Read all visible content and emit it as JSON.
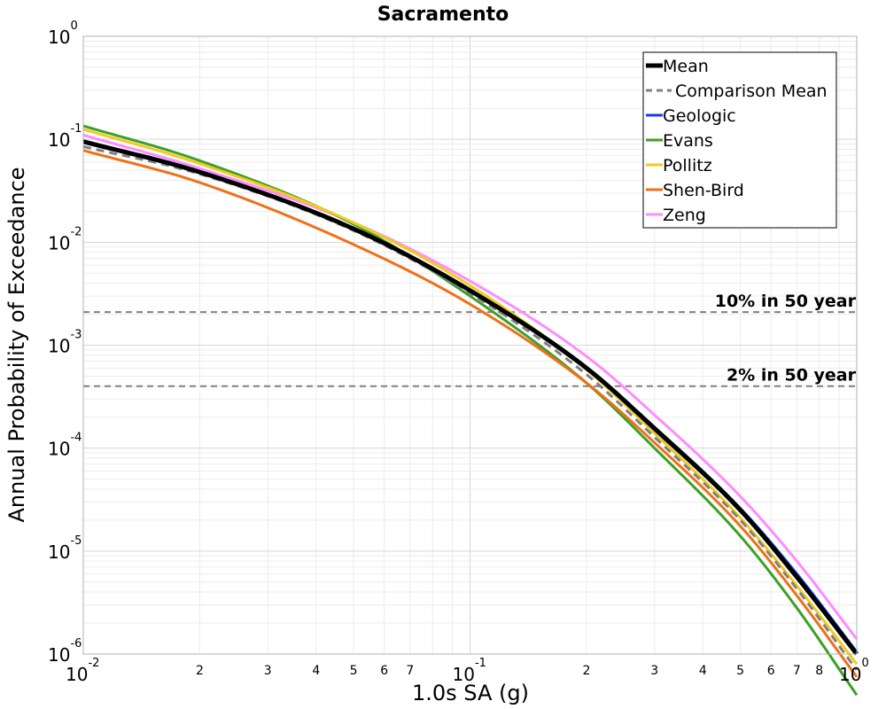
{
  "chart_data": {
    "type": "line",
    "title": "Sacramento",
    "xlabel": "1.0s SA (g)",
    "ylabel": "Annual Probability of Exceedance",
    "x_scale": "log",
    "y_scale": "log",
    "xlim": [
      0.01,
      1.0
    ],
    "ylim": [
      1e-06,
      1.0
    ],
    "grid": true,
    "legend_position": "top-right",
    "x_major_ticks": [
      {
        "base": "10",
        "exp": "-2",
        "value": 0.01
      },
      {
        "base": "10",
        "exp": "-1",
        "value": 0.1
      },
      {
        "base": "10",
        "exp": "0",
        "value": 1.0
      }
    ],
    "x_minor_tick_labels": [
      {
        "label": "2",
        "value": 0.02
      },
      {
        "label": "3",
        "value": 0.03
      },
      {
        "label": "4",
        "value": 0.04
      },
      {
        "label": "5",
        "value": 0.05
      },
      {
        "label": "6",
        "value": 0.06
      },
      {
        "label": "7",
        "value": 0.07
      },
      {
        "label": "2",
        "value": 0.2
      },
      {
        "label": "3",
        "value": 0.3
      },
      {
        "label": "4",
        "value": 0.4
      },
      {
        "label": "5",
        "value": 0.5
      },
      {
        "label": "6",
        "value": 0.6
      },
      {
        "label": "7",
        "value": 0.7
      },
      {
        "label": "8",
        "value": 0.8
      }
    ],
    "y_major_ticks": [
      {
        "base": "10",
        "exp": "0",
        "value": 1.0
      },
      {
        "base": "10",
        "exp": "-1",
        "value": 0.1
      },
      {
        "base": "10",
        "exp": "-2",
        "value": 0.01
      },
      {
        "base": "10",
        "exp": "-3",
        "value": 0.001
      },
      {
        "base": "10",
        "exp": "-4",
        "value": 0.0001
      },
      {
        "base": "10",
        "exp": "-5",
        "value": 1e-05
      },
      {
        "base": "10",
        "exp": "-6",
        "value": 1e-06
      }
    ],
    "reference_lines": [
      {
        "label": "10% in 50 year",
        "y": 0.0021,
        "color": "#808080"
      },
      {
        "label": "2% in 50 year",
        "y": 0.0004,
        "color": "#808080"
      }
    ],
    "x": [
      0.01,
      0.02,
      0.05,
      0.1,
      0.2,
      0.3,
      0.5,
      0.7,
      1.0
    ],
    "series": [
      {
        "name": "Zeng",
        "color": "#ff8cff",
        "dash": false,
        "width": 3,
        "values": [
          0.11,
          0.052,
          0.0155,
          0.0042,
          0.00078,
          0.00021,
          3.4e-05,
          8e-06,
          1.4e-06
        ]
      },
      {
        "name": "Evans",
        "color": "#3ca028",
        "dash": false,
        "width": 3,
        "values": [
          0.135,
          0.062,
          0.015,
          0.003,
          0.00043,
          0.0001,
          1.4e-05,
          2.8e-06,
          4e-07
        ]
      },
      {
        "name": "Pollitz",
        "color": "#f2cc1c",
        "dash": false,
        "width": 3,
        "values": [
          0.125,
          0.058,
          0.0155,
          0.0038,
          0.00058,
          0.00014,
          2.1e-05,
          4.6e-06,
          8e-07
        ]
      },
      {
        "name": "Shen-Bird",
        "color": "#f07018",
        "dash": false,
        "width": 3,
        "values": [
          0.078,
          0.038,
          0.0095,
          0.0025,
          0.00043,
          0.000113,
          1.75e-05,
          3.7e-06,
          6e-07
        ]
      },
      {
        "name": "Geologic",
        "color": "#1040e8",
        "dash": false,
        "width": 3,
        "values": [
          0.097,
          0.049,
          0.0135,
          0.0034,
          0.0006,
          0.00016,
          2.6e-05,
          6e-06,
          1.05e-06
        ]
      },
      {
        "name": "Comparison Mean",
        "color": "#808080",
        "dash": true,
        "width": 3,
        "values": [
          0.085,
          0.046,
          0.013,
          0.0032,
          0.00052,
          0.000128,
          2e-05,
          4.3e-06,
          7e-07
        ]
      },
      {
        "name": "Mean",
        "color": "#000000",
        "dash": false,
        "width": 5,
        "values": [
          0.095,
          0.048,
          0.0135,
          0.0034,
          0.0006,
          0.000155,
          2.5e-05,
          5.6e-06,
          1e-06
        ]
      }
    ],
    "legend_order": [
      "Mean",
      "Comparison Mean",
      "Geologic",
      "Evans",
      "Pollitz",
      "Shen-Bird",
      "Zeng"
    ]
  }
}
